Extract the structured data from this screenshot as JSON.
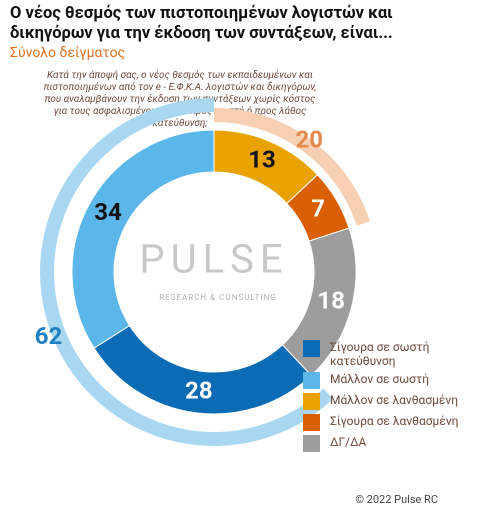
{
  "chart_data": {
    "type": "donut",
    "title": "Ο νέος θεσμός των πιστοποιημένων λογιστών και δικηγόρων για την έκδοση των συντάξεων, είναι...",
    "subtitle": "Σύνολο δείγματος",
    "question": "Κατά την άποψή σας, ο νέος θεσμός των εκπαιδευμένων και πιστοποιημένων από τον e - Ε.Φ.Κ.Α. λογιστών και δικηγόρων, που αναλαμβάνουν την έκδοση των συντάξεων χωρίς κόστος για τους ασφαλισμένους, είναι προς σωστή ή προς λάθος κατεύθυνση;",
    "series": [
      {
        "name": "Σίγουρα σε σωστή κατεύθυνση",
        "color": "#0b6cb5",
        "label_color": "#ffffff",
        "values": [
          28
        ]
      },
      {
        "name": "Μάλλον σε σωστή",
        "color": "#5bb6e9",
        "label_color": "#111111",
        "values": [
          34
        ]
      },
      {
        "name": "Μάλλον σε λανθασμένη",
        "color": "#e9a300",
        "label_color": "#111111",
        "values": [
          13
        ]
      },
      {
        "name": "Σίγουρα σε λανθασμένη",
        "color": "#d95f02",
        "label_color": "#ffffff",
        "values": [
          7
        ]
      },
      {
        "name": "ΔΓ/ΔΑ",
        "color": "#9d9d9d",
        "label_color": "#ffffff",
        "values": [
          18
        ]
      }
    ],
    "outer": [
      {
        "value": 20,
        "color": "#f7cfb2",
        "label_color": "#e58a4c"
      },
      {
        "value": 62,
        "color": "#a9d7f1",
        "label_color": "#1d7fc4"
      }
    ],
    "watermark": "PULSE",
    "watermark_sub": "RESEARCH & CONSULTING",
    "footer": "© 2022 Pulse RC"
  }
}
